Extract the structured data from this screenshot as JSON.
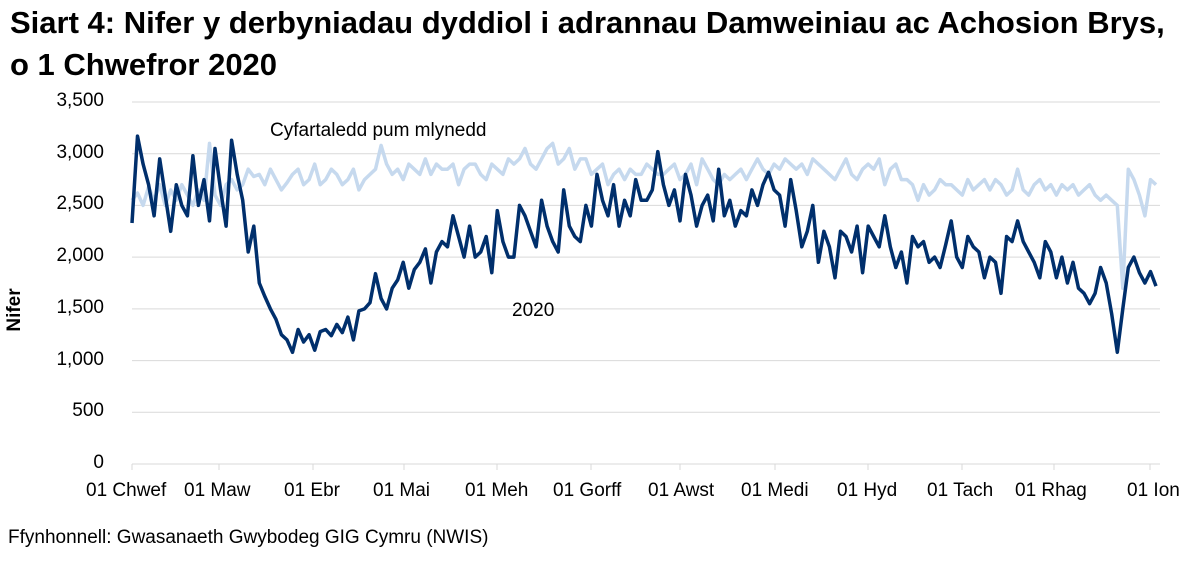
{
  "title": "Siart 4: Nifer y derbyniadau dyddiol i adrannau Damweiniau ac Achosion Brys, o 1 Chwefror 2020",
  "source": "Ffynhonnell: Gwasanaeth Gwybodeg GIG Cymru (NWIS)",
  "colors": {
    "series_2020": "#002f6c",
    "series_avg": "#c6d9ee",
    "gridline": "#d9d9d9",
    "axis": "#d9d9d9"
  },
  "chart_data": {
    "type": "line",
    "title": "Siart 4: Nifer y derbyniadau dyddiol i adrannau Damweiniau ac Achosion Brys, o 1 Chwefror 2020",
    "xlabel": "",
    "ylabel": "Nifer",
    "ylim": [
      0,
      3500
    ],
    "yticks": [
      0,
      500,
      1000,
      1500,
      2000,
      2500,
      3000,
      3500
    ],
    "ytick_labels": [
      "0",
      "500",
      "1,000",
      "1,500",
      "2,000",
      "2,500",
      "3,000",
      "3,500"
    ],
    "xtick_labels": [
      "01 Chwef",
      "01 Maw",
      "01 Ebr",
      "01 Mai",
      "01 Meh",
      "01 Gorff",
      "01 Awst",
      "01 Medi",
      "01 Hyd",
      "01 Tach",
      "01 Rhag",
      "01 Ion"
    ],
    "grid": true,
    "legend_position": "inline annotations",
    "annotations": [
      {
        "text": "Cyfartaledd pum mlynedd",
        "series": "avg"
      },
      {
        "text": "2020",
        "series": "2020"
      }
    ],
    "x_note": "Approximate values sampled every ~3 days from 01 Chwef 2020 to ~04 Ion 2021",
    "series": [
      {
        "name": "2020",
        "values": [
          2330,
          3170,
          2900,
          2700,
          2400,
          2950,
          2600,
          2250,
          2700,
          2500,
          2400,
          2980,
          2500,
          2750,
          2350,
          3050,
          2650,
          2300,
          3130,
          2800,
          2550,
          2050,
          2300,
          1750,
          1620,
          1500,
          1400,
          1250,
          1200,
          1080,
          1300,
          1180,
          1250,
          1100,
          1280,
          1300,
          1240,
          1350,
          1270,
          1420,
          1200,
          1480,
          1500,
          1560,
          1840,
          1600,
          1500,
          1700,
          1780,
          1950,
          1700,
          1880,
          1950,
          2080,
          1750,
          2050,
          2150,
          2100,
          2400,
          2200,
          2000,
          2300,
          2000,
          2050,
          2200,
          1850,
          2450,
          2150,
          2000,
          2000,
          2500,
          2400,
          2250,
          2100,
          2550,
          2300,
          2150,
          2050,
          2650,
          2300,
          2200,
          2150,
          2500,
          2300,
          2800,
          2550,
          2400,
          2700,
          2300,
          2550,
          2400,
          2750,
          2550,
          2550,
          2650,
          3020,
          2700,
          2500,
          2650,
          2350,
          2800,
          2600,
          2300,
          2500,
          2600,
          2350,
          2850,
          2400,
          2550,
          2300,
          2450,
          2400,
          2650,
          2500,
          2700,
          2820,
          2650,
          2600,
          2300,
          2750,
          2450,
          2100,
          2250,
          2500,
          1950,
          2250,
          2100,
          1800,
          2250,
          2200,
          2050,
          2300,
          1850,
          2300,
          2200,
          2100,
          2400,
          2100,
          1900,
          2050,
          1750,
          2200,
          2100,
          2150,
          1950,
          2000,
          1900,
          2120,
          2350,
          2000,
          1900,
          2200,
          2100,
          2050,
          1800,
          2000,
          1950,
          1650,
          2200,
          2150,
          2350,
          2150,
          2050,
          1950,
          1800,
          2150,
          2050,
          1800,
          2000,
          1750,
          1950,
          1700,
          1650,
          1550,
          1650,
          1900,
          1750,
          1450,
          1080,
          1500,
          1900,
          2000,
          1850,
          1750,
          1860,
          1720
        ]
      },
      {
        "name": "Cyfartaledd pum mlynedd",
        "values": [
          2550,
          2620,
          2500,
          2680,
          2550,
          2700,
          2500,
          2650,
          2550,
          2700,
          2600,
          2500,
          2650,
          2550,
          3100,
          2600,
          2500,
          2700,
          2750,
          2650,
          2700,
          2850,
          2780,
          2800,
          2700,
          2850,
          2750,
          2650,
          2720,
          2800,
          2850,
          2700,
          2750,
          2900,
          2700,
          2750,
          2850,
          2800,
          2700,
          2750,
          2850,
          2650,
          2750,
          2800,
          2850,
          3080,
          2900,
          2800,
          2850,
          2750,
          2900,
          2850,
          2800,
          2950,
          2800,
          2900,
          2850,
          2850,
          2900,
          2700,
          2850,
          2900,
          2900,
          2800,
          2750,
          2900,
          2850,
          2800,
          2950,
          2900,
          2950,
          3050,
          2900,
          2850,
          2950,
          3050,
          3100,
          2900,
          2950,
          3050,
          2850,
          2950,
          2950,
          2800,
          2850,
          2900,
          2700,
          2800,
          2850,
          2750,
          2850,
          2800,
          2800,
          2900,
          2850,
          2800,
          2800,
          2850,
          2900,
          2750,
          2800,
          2900,
          2700,
          2950,
          2850,
          2750,
          2700,
          2800,
          2750,
          2800,
          2850,
          2750,
          2850,
          2950,
          2850,
          2800,
          2900,
          2850,
          2950,
          2900,
          2850,
          2900,
          2800,
          2950,
          2900,
          2850,
          2800,
          2750,
          2850,
          2950,
          2800,
          2750,
          2850,
          2900,
          2850,
          2950,
          2700,
          2850,
          2900,
          2750,
          2750,
          2700,
          2550,
          2700,
          2600,
          2650,
          2750,
          2700,
          2700,
          2650,
          2600,
          2750,
          2650,
          2700,
          2750,
          2650,
          2750,
          2700,
          2600,
          2650,
          2850,
          2650,
          2600,
          2700,
          2750,
          2650,
          2700,
          2600,
          2700,
          2650,
          2700,
          2600,
          2650,
          2700,
          2600,
          2550,
          2600,
          2550,
          2500,
          1700,
          2850,
          2750,
          2600,
          2400,
          2750,
          2700
        ]
      }
    ]
  }
}
